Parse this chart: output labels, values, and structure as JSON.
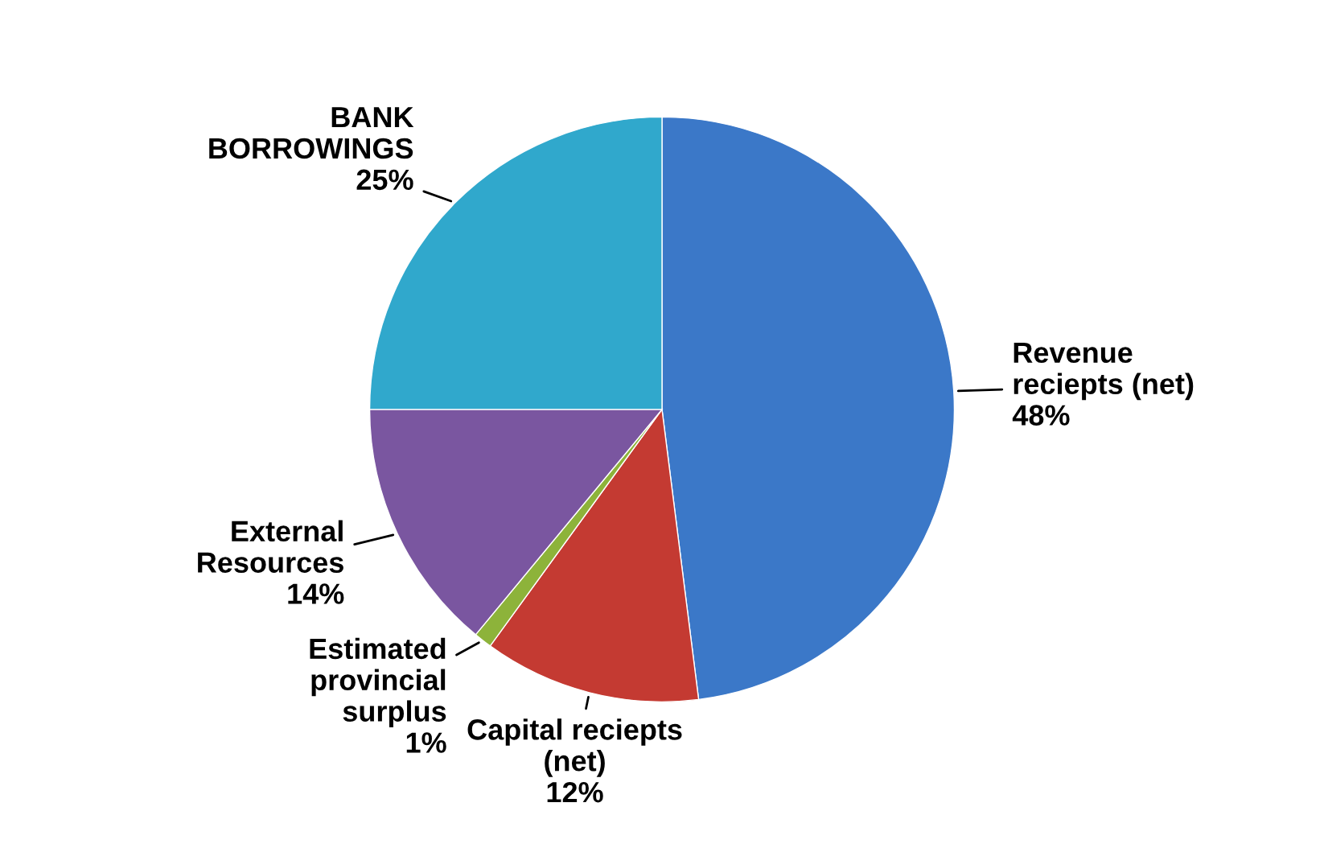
{
  "chart_data": {
    "type": "pie",
    "categories": [
      "Revenue\nreciepts (net)",
      "Capital reciepts\n(net)",
      "Estimated\nprovincial\nsurplus",
      "External\nResources",
      "BANK\nBORROWINGS"
    ],
    "values": [
      48,
      12,
      1,
      14,
      25
    ],
    "value_labels": [
      "48%",
      "12%",
      "1%",
      "14%",
      "25%"
    ],
    "colors": [
      "#3b78c8",
      "#c43a32",
      "#8db33a",
      "#7a56a0",
      "#30a8cc"
    ]
  }
}
